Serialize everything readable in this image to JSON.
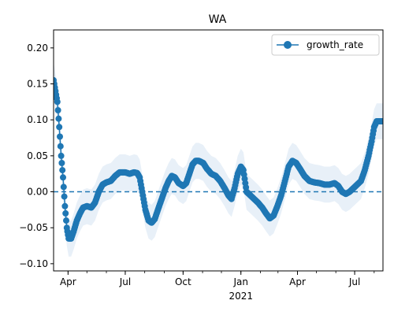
{
  "chart_data": {
    "type": "line",
    "title": "WA",
    "xlabel": "",
    "ylabel": "",
    "legend": {
      "placement": "top-right",
      "entries": [
        "growth_rate"
      ]
    },
    "grid": false,
    "x_range": [
      "2020-03-09",
      "2021-08-15"
    ],
    "ylim": [
      -0.11,
      0.225
    ],
    "x_ticks": [
      {
        "date": "2020-04-01",
        "label": "Apr"
      },
      {
        "date": "2020-07-01",
        "label": "Jul"
      },
      {
        "date": "2020-10-01",
        "label": "Oct"
      },
      {
        "date": "2021-01-01",
        "label": "Jan",
        "sublabel": "2021"
      },
      {
        "date": "2021-04-01",
        "label": "Apr"
      },
      {
        "date": "2021-07-01",
        "label": "Jul"
      }
    ],
    "y_ticks": [
      -0.1,
      -0.05,
      0.0,
      0.05,
      0.1,
      0.15,
      0.2
    ],
    "y_tick_labels": [
      "−0.10",
      "−0.05",
      "0.00",
      "0.05",
      "0.10",
      "0.15",
      "0.20"
    ],
    "reference_line": {
      "y": 0.0,
      "style": "dashed"
    },
    "colors": {
      "series": "#1f77b4",
      "band": "#e8f0f8"
    },
    "series": [
      {
        "name": "growth_rate",
        "band_halfwidth": 0.025,
        "points": [
          [
            "2020-03-09",
            0.155
          ],
          [
            "2020-03-12",
            0.14
          ],
          [
            "2020-03-15",
            0.125
          ],
          [
            "2020-03-18",
            0.09
          ],
          [
            "2020-03-21",
            0.05
          ],
          [
            "2020-03-24",
            0.02
          ],
          [
            "2020-03-27",
            -0.02
          ],
          [
            "2020-03-30",
            -0.05
          ],
          [
            "2020-04-02",
            -0.065
          ],
          [
            "2020-04-06",
            -0.065
          ],
          [
            "2020-04-10",
            -0.055
          ],
          [
            "2020-04-15",
            -0.04
          ],
          [
            "2020-04-20",
            -0.03
          ],
          [
            "2020-04-25",
            -0.022
          ],
          [
            "2020-05-01",
            -0.02
          ],
          [
            "2020-05-08",
            -0.022
          ],
          [
            "2020-05-14",
            -0.015
          ],
          [
            "2020-05-20",
            0.0
          ],
          [
            "2020-05-26",
            0.01
          ],
          [
            "2020-06-01",
            0.013
          ],
          [
            "2020-06-08",
            0.015
          ],
          [
            "2020-06-15",
            0.022
          ],
          [
            "2020-06-22",
            0.027
          ],
          [
            "2020-07-01",
            0.027
          ],
          [
            "2020-07-08",
            0.025
          ],
          [
            "2020-07-15",
            0.027
          ],
          [
            "2020-07-20",
            0.026
          ],
          [
            "2020-07-24",
            0.02
          ],
          [
            "2020-07-28",
            0.0
          ],
          [
            "2020-08-02",
            -0.025
          ],
          [
            "2020-08-07",
            -0.04
          ],
          [
            "2020-08-12",
            -0.043
          ],
          [
            "2020-08-17",
            -0.038
          ],
          [
            "2020-08-22",
            -0.025
          ],
          [
            "2020-08-28",
            -0.01
          ],
          [
            "2020-09-03",
            0.005
          ],
          [
            "2020-09-08",
            0.015
          ],
          [
            "2020-09-13",
            0.022
          ],
          [
            "2020-09-18",
            0.02
          ],
          [
            "2020-09-24",
            0.012
          ],
          [
            "2020-10-01",
            0.008
          ],
          [
            "2020-10-06",
            0.012
          ],
          [
            "2020-10-11",
            0.025
          ],
          [
            "2020-10-16",
            0.038
          ],
          [
            "2020-10-21",
            0.043
          ],
          [
            "2020-10-26",
            0.043
          ],
          [
            "2020-11-02",
            0.04
          ],
          [
            "2020-11-08",
            0.032
          ],
          [
            "2020-11-15",
            0.025
          ],
          [
            "2020-11-22",
            0.022
          ],
          [
            "2020-11-29",
            0.015
          ],
          [
            "2020-12-06",
            0.005
          ],
          [
            "2020-12-12",
            -0.005
          ],
          [
            "2020-12-17",
            -0.01
          ],
          [
            "2020-12-22",
            0.005
          ],
          [
            "2020-12-27",
            0.025
          ],
          [
            "2021-01-01",
            0.035
          ],
          [
            "2021-01-05",
            0.03
          ],
          [
            "2021-01-10",
            0.0
          ],
          [
            "2021-01-16",
            -0.005
          ],
          [
            "2021-01-22",
            -0.01
          ],
          [
            "2021-01-28",
            -0.015
          ],
          [
            "2021-02-04",
            -0.022
          ],
          [
            "2021-02-10",
            -0.03
          ],
          [
            "2021-02-16",
            -0.037
          ],
          [
            "2021-02-22",
            -0.033
          ],
          [
            "2021-02-28",
            -0.02
          ],
          [
            "2021-03-06",
            -0.005
          ],
          [
            "2021-03-12",
            0.015
          ],
          [
            "2021-03-18",
            0.035
          ],
          [
            "2021-03-24",
            0.043
          ],
          [
            "2021-03-30",
            0.04
          ],
          [
            "2021-04-05",
            0.032
          ],
          [
            "2021-04-12",
            0.022
          ],
          [
            "2021-04-20",
            0.015
          ],
          [
            "2021-04-28",
            0.013
          ],
          [
            "2021-05-06",
            0.012
          ],
          [
            "2021-05-14",
            0.01
          ],
          [
            "2021-05-22",
            0.01
          ],
          [
            "2021-05-30",
            0.012
          ],
          [
            "2021-06-05",
            0.008
          ],
          [
            "2021-06-11",
            0.0
          ],
          [
            "2021-06-17",
            -0.003
          ],
          [
            "2021-06-23",
            0.0
          ],
          [
            "2021-06-29",
            0.005
          ],
          [
            "2021-07-05",
            0.01
          ],
          [
            "2021-07-11",
            0.015
          ],
          [
            "2021-07-17",
            0.03
          ],
          [
            "2021-07-23",
            0.05
          ],
          [
            "2021-07-28",
            0.07
          ],
          [
            "2021-08-01",
            0.09
          ],
          [
            "2021-08-05",
            0.098
          ],
          [
            "2021-08-10",
            0.098
          ],
          [
            "2021-08-15",
            0.098
          ]
        ]
      }
    ]
  }
}
